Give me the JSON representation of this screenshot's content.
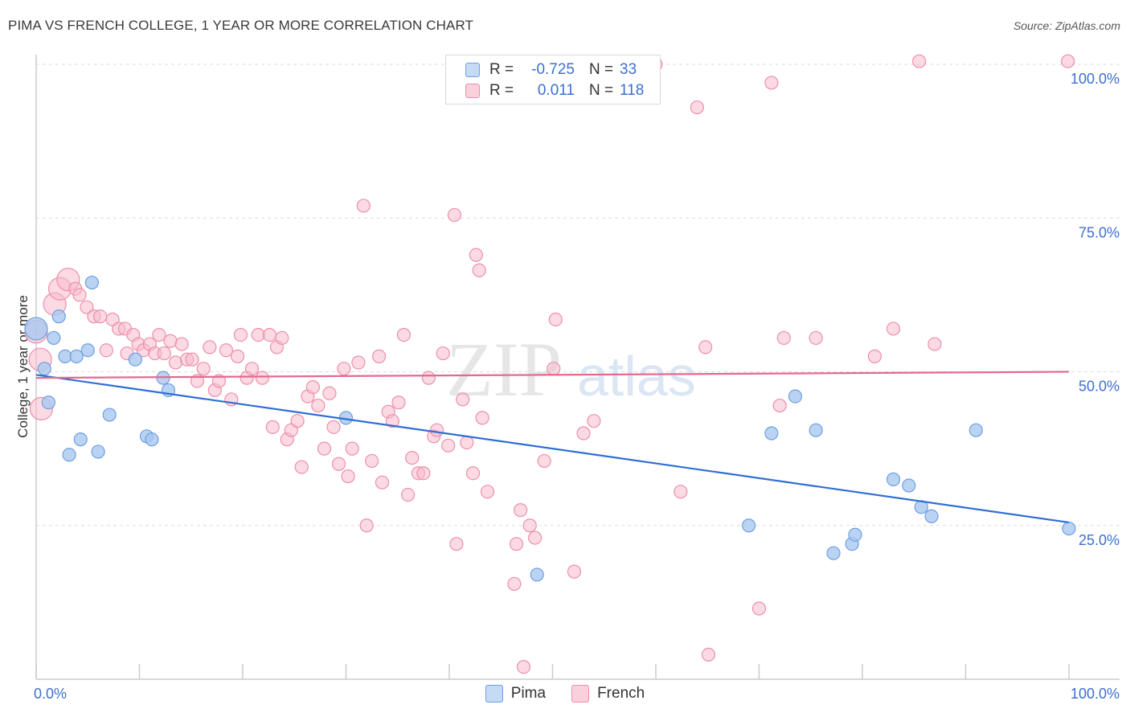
{
  "title": "PIMA VS FRENCH COLLEGE, 1 YEAR OR MORE CORRELATION CHART",
  "source": "Source: ZipAtlas.com",
  "watermark": {
    "zip": "ZIP",
    "atlas": "atlas"
  },
  "legend": {
    "pima": {
      "r_label": "R =",
      "r_value": "-0.725",
      "n_label": "N =",
      "n_value": "33"
    },
    "french": {
      "r_label": "R =",
      "r_value": "0.011",
      "n_label": "N =",
      "n_value": "118"
    }
  },
  "chart_data": {
    "type": "scatter",
    "title": "PIMA VS FRENCH COLLEGE, 1 YEAR OR MORE CORRELATION CHART",
    "xlabel": "",
    "ylabel": "College, 1 year or more",
    "xlim": [
      0,
      100
    ],
    "ylim": [
      0,
      102
    ],
    "x_tick_labels": [
      "0.0%",
      "100.0%"
    ],
    "y_tick_labels": [
      {
        "value": 100,
        "label": "100.0%"
      },
      {
        "value": 75,
        "label": "75.0%"
      },
      {
        "value": 50,
        "label": "50.0%"
      },
      {
        "value": 25,
        "label": "25.0%"
      }
    ],
    "grid": true,
    "colors": {
      "pima_fill": "#a9c8f0",
      "pima_edge": "#6f9fe0",
      "pima_line": "#2f6fd0",
      "french_fill": "#f7bccd",
      "french_edge": "#ec8fab",
      "french_line": "#e5698f",
      "tick_label": "#3d6fd0"
    },
    "series": [
      {
        "name": "Pima",
        "trend": {
          "x": [
            0,
            100
          ],
          "y": [
            49.5,
            25.5
          ]
        },
        "points": [
          {
            "x": 0.0,
            "y": 57.0,
            "big": true
          },
          {
            "x": 0.8,
            "y": 50.5
          },
          {
            "x": 1.2,
            "y": 45.0
          },
          {
            "x": 1.7,
            "y": 55.5
          },
          {
            "x": 2.2,
            "y": 59.0
          },
          {
            "x": 2.8,
            "y": 52.5
          },
          {
            "x": 3.2,
            "y": 36.5
          },
          {
            "x": 3.9,
            "y": 52.5
          },
          {
            "x": 4.3,
            "y": 39.0
          },
          {
            "x": 5.0,
            "y": 53.5
          },
          {
            "x": 5.4,
            "y": 64.5
          },
          {
            "x": 6.0,
            "y": 37.0
          },
          {
            "x": 7.1,
            "y": 43.0
          },
          {
            "x": 9.6,
            "y": 52.0
          },
          {
            "x": 10.7,
            "y": 39.5
          },
          {
            "x": 11.2,
            "y": 39.0
          },
          {
            "x": 12.3,
            "y": 49.0
          },
          {
            "x": 12.8,
            "y": 47.0
          },
          {
            "x": 30.0,
            "y": 42.5
          },
          {
            "x": 48.5,
            "y": 17.0
          },
          {
            "x": 69.0,
            "y": 25.0
          },
          {
            "x": 71.2,
            "y": 40.0
          },
          {
            "x": 73.5,
            "y": 46.0
          },
          {
            "x": 75.5,
            "y": 40.5
          },
          {
            "x": 77.2,
            "y": 20.5
          },
          {
            "x": 79.0,
            "y": 22.0
          },
          {
            "x": 79.3,
            "y": 23.5
          },
          {
            "x": 83.0,
            "y": 32.5
          },
          {
            "x": 84.5,
            "y": 31.5
          },
          {
            "x": 85.7,
            "y": 28.0
          },
          {
            "x": 86.7,
            "y": 26.5
          },
          {
            "x": 91.0,
            "y": 40.5
          },
          {
            "x": 100.0,
            "y": 24.5
          }
        ]
      },
      {
        "name": "French",
        "trend": {
          "x": [
            0,
            100
          ],
          "y": [
            49.0,
            50.0
          ]
        },
        "points": [
          {
            "x": 0.0,
            "y": 56.5,
            "big": true
          },
          {
            "x": 0.4,
            "y": 52.0,
            "big": true
          },
          {
            "x": 0.5,
            "y": 44.0,
            "big": true
          },
          {
            "x": 1.8,
            "y": 61.0,
            "big": true
          },
          {
            "x": 2.3,
            "y": 63.5,
            "big": true
          },
          {
            "x": 3.1,
            "y": 65.0,
            "big": true
          },
          {
            "x": 3.8,
            "y": 63.5
          },
          {
            "x": 4.2,
            "y": 62.5
          },
          {
            "x": 4.9,
            "y": 60.5
          },
          {
            "x": 5.6,
            "y": 59.0
          },
          {
            "x": 6.2,
            "y": 59.0
          },
          {
            "x": 6.8,
            "y": 53.5
          },
          {
            "x": 7.4,
            "y": 58.5
          },
          {
            "x": 8.0,
            "y": 57.0
          },
          {
            "x": 8.6,
            "y": 57.0
          },
          {
            "x": 8.8,
            "y": 53.0
          },
          {
            "x": 9.4,
            "y": 56.0
          },
          {
            "x": 9.9,
            "y": 54.5
          },
          {
            "x": 10.4,
            "y": 53.5
          },
          {
            "x": 11.0,
            "y": 54.5
          },
          {
            "x": 11.5,
            "y": 53.0
          },
          {
            "x": 11.9,
            "y": 56.0
          },
          {
            "x": 12.4,
            "y": 53.0
          },
          {
            "x": 13.0,
            "y": 55.0
          },
          {
            "x": 13.5,
            "y": 51.5
          },
          {
            "x": 14.1,
            "y": 54.5
          },
          {
            "x": 14.6,
            "y": 52.0
          },
          {
            "x": 15.1,
            "y": 52.0
          },
          {
            "x": 15.6,
            "y": 48.5
          },
          {
            "x": 16.2,
            "y": 50.5
          },
          {
            "x": 16.8,
            "y": 54.0
          },
          {
            "x": 17.3,
            "y": 47.0
          },
          {
            "x": 17.7,
            "y": 48.5
          },
          {
            "x": 18.4,
            "y": 53.5
          },
          {
            "x": 18.9,
            "y": 45.5
          },
          {
            "x": 19.5,
            "y": 52.5
          },
          {
            "x": 19.8,
            "y": 56.0
          },
          {
            "x": 20.4,
            "y": 49.0
          },
          {
            "x": 20.9,
            "y": 50.5
          },
          {
            "x": 21.5,
            "y": 56.0
          },
          {
            "x": 21.9,
            "y": 49.0
          },
          {
            "x": 22.6,
            "y": 56.0
          },
          {
            "x": 22.9,
            "y": 41.0
          },
          {
            "x": 23.3,
            "y": 54.0
          },
          {
            "x": 23.8,
            "y": 55.5
          },
          {
            "x": 24.3,
            "y": 39.0
          },
          {
            "x": 24.7,
            "y": 40.5
          },
          {
            "x": 25.3,
            "y": 42.0
          },
          {
            "x": 25.7,
            "y": 34.5
          },
          {
            "x": 26.3,
            "y": 46.0
          },
          {
            "x": 26.8,
            "y": 47.5
          },
          {
            "x": 27.3,
            "y": 44.5
          },
          {
            "x": 27.9,
            "y": 37.5
          },
          {
            "x": 28.4,
            "y": 46.5
          },
          {
            "x": 28.8,
            "y": 41.0
          },
          {
            "x": 29.3,
            "y": 35.0
          },
          {
            "x": 29.8,
            "y": 50.5
          },
          {
            "x": 30.2,
            "y": 33.0
          },
          {
            "x": 30.6,
            "y": 37.5
          },
          {
            "x": 31.2,
            "y": 51.5
          },
          {
            "x": 31.7,
            "y": 77.0
          },
          {
            "x": 32.0,
            "y": 25.0
          },
          {
            "x": 32.5,
            "y": 35.5
          },
          {
            "x": 33.2,
            "y": 52.5
          },
          {
            "x": 33.5,
            "y": 32.0
          },
          {
            "x": 34.1,
            "y": 43.5
          },
          {
            "x": 34.5,
            "y": 42.0
          },
          {
            "x": 35.1,
            "y": 45.0
          },
          {
            "x": 35.6,
            "y": 56.0
          },
          {
            "x": 36.0,
            "y": 30.0
          },
          {
            "x": 36.4,
            "y": 36.0
          },
          {
            "x": 37.0,
            "y": 33.5
          },
          {
            "x": 37.5,
            "y": 33.5
          },
          {
            "x": 38.0,
            "y": 49.0
          },
          {
            "x": 38.5,
            "y": 39.5
          },
          {
            "x": 38.8,
            "y": 40.5
          },
          {
            "x": 39.4,
            "y": 53.0
          },
          {
            "x": 39.9,
            "y": 38.0
          },
          {
            "x": 40.5,
            "y": 75.5
          },
          {
            "x": 40.7,
            "y": 22.0
          },
          {
            "x": 41.3,
            "y": 45.5
          },
          {
            "x": 41.7,
            "y": 38.5
          },
          {
            "x": 42.3,
            "y": 33.5
          },
          {
            "x": 42.6,
            "y": 69.0
          },
          {
            "x": 42.9,
            "y": 66.5
          },
          {
            "x": 43.2,
            "y": 42.5
          },
          {
            "x": 43.7,
            "y": 30.5
          },
          {
            "x": 46.3,
            "y": 15.5
          },
          {
            "x": 46.5,
            "y": 22.0
          },
          {
            "x": 46.9,
            "y": 27.5
          },
          {
            "x": 47.2,
            "y": 2.0
          },
          {
            "x": 47.8,
            "y": 25.0
          },
          {
            "x": 48.3,
            "y": 23.0
          },
          {
            "x": 49.2,
            "y": 35.5
          },
          {
            "x": 50.3,
            "y": 58.5
          },
          {
            "x": 52.1,
            "y": 17.5
          },
          {
            "x": 53.0,
            "y": 40.0
          },
          {
            "x": 54.0,
            "y": 42.0
          },
          {
            "x": 50.1,
            "y": 50.5
          },
          {
            "x": 60.0,
            "y": 100.0
          },
          {
            "x": 62.4,
            "y": 30.5
          },
          {
            "x": 64.0,
            "y": 93.0
          },
          {
            "x": 64.8,
            "y": 54.0
          },
          {
            "x": 65.1,
            "y": 4.0
          },
          {
            "x": 70.0,
            "y": 11.5
          },
          {
            "x": 71.2,
            "y": 97.0
          },
          {
            "x": 72.0,
            "y": 44.5
          },
          {
            "x": 72.4,
            "y": 55.5
          },
          {
            "x": 75.5,
            "y": 55.5
          },
          {
            "x": 81.2,
            "y": 52.5
          },
          {
            "x": 83.0,
            "y": 57.0
          },
          {
            "x": 85.5,
            "y": 100.5
          },
          {
            "x": 87.0,
            "y": 54.5
          },
          {
            "x": 99.9,
            "y": 100.5
          }
        ]
      }
    ]
  }
}
